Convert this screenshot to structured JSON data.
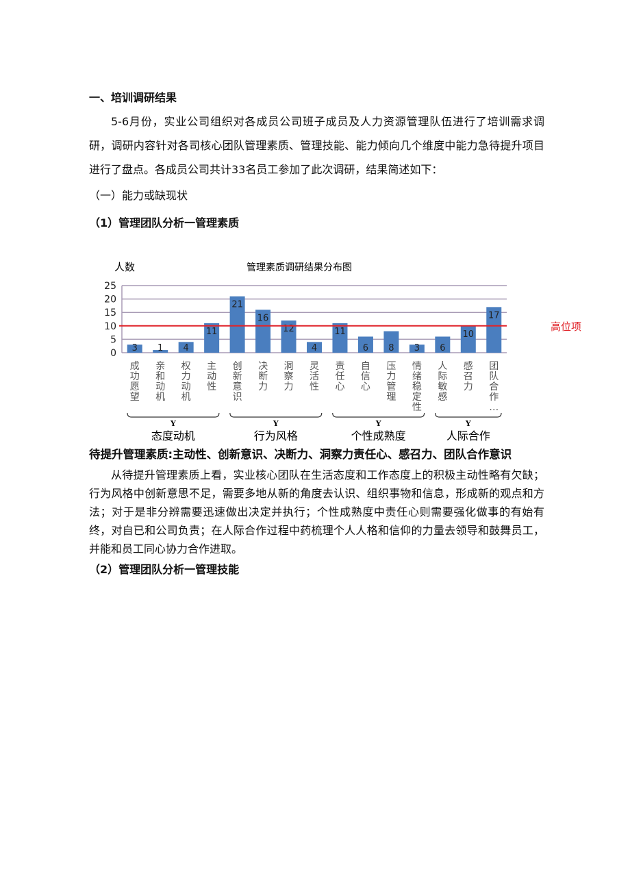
{
  "heading1": "一、培训调研结果",
  "para1": "5-6月份，实业公司组织对各成员公司班子成员及人力资源管理队伍进行了培训需求调研，调研内容针对各司核心团队管理素质、管理技能、能力倾向几个维度中能力急待提升项目进行了盘点。各成员公司共计33名员工参加了此次调研，结果简述如下：",
  "sub1": "（一）能力或缺现状",
  "sub2": "（1）管理团队分析一管理素质",
  "high_label": "高位项",
  "summary": "待提升管理素质:主动性、创新意识、决断力、洞察力责任心、感召力、团队合作意识",
  "para2": "从待提升管理素质上看，实业核心团队在生活态度和工作态度上的积极主动性略有欠缺；行为风格中创新意思不足，需要多地从新的角度去认识、组织事物和信息，形成新的观点和方法；对于是非分辨需要迅速做出决定并执行；个性成熟度中责任心则需要强化做事的有始有终，对自已和公司负责；在人际合作过程中药梳理个人人格和信仰的力量去领导和鼓舞员工，并能和员工同心协力合作进取。",
  "sub3": "（2）管理团队分析一管理技能",
  "chart_data": {
    "type": "bar",
    "title": "管理素质调研结果分布图",
    "ylabel": "人数",
    "ylim": [
      0,
      25
    ],
    "yticks": [
      "0",
      "5",
      "10",
      "15",
      "20",
      "25"
    ],
    "grid": true,
    "categories": [
      "成功愿望",
      "亲和动机",
      "权力动机",
      "主动性",
      "创新意识",
      "决断力",
      "洞察力",
      "灵活性",
      "责任心",
      "自信心",
      "压力管理",
      "情绪稳定性",
      "人际敏感",
      "感召力",
      "团队合作…"
    ],
    "values": [
      3,
      1,
      4,
      11,
      21,
      16,
      12,
      4,
      11,
      6,
      8,
      3,
      6,
      10,
      17
    ],
    "threshold": 10,
    "groups": [
      {
        "label": "态度动机",
        "mark": "Y",
        "from": 0,
        "to": 3
      },
      {
        "label": "行为风格",
        "mark": "Y",
        "from": 4,
        "to": 7
      },
      {
        "label": "个性成熟度",
        "mark": "Y",
        "from": 8,
        "to": 11
      },
      {
        "label": "人际合作",
        "mark": "Y",
        "from": 12,
        "to": 14
      }
    ],
    "colors": {
      "bar": "#4a7ebf",
      "grid": "#a89bb5",
      "threshold": "#e0242a"
    }
  }
}
